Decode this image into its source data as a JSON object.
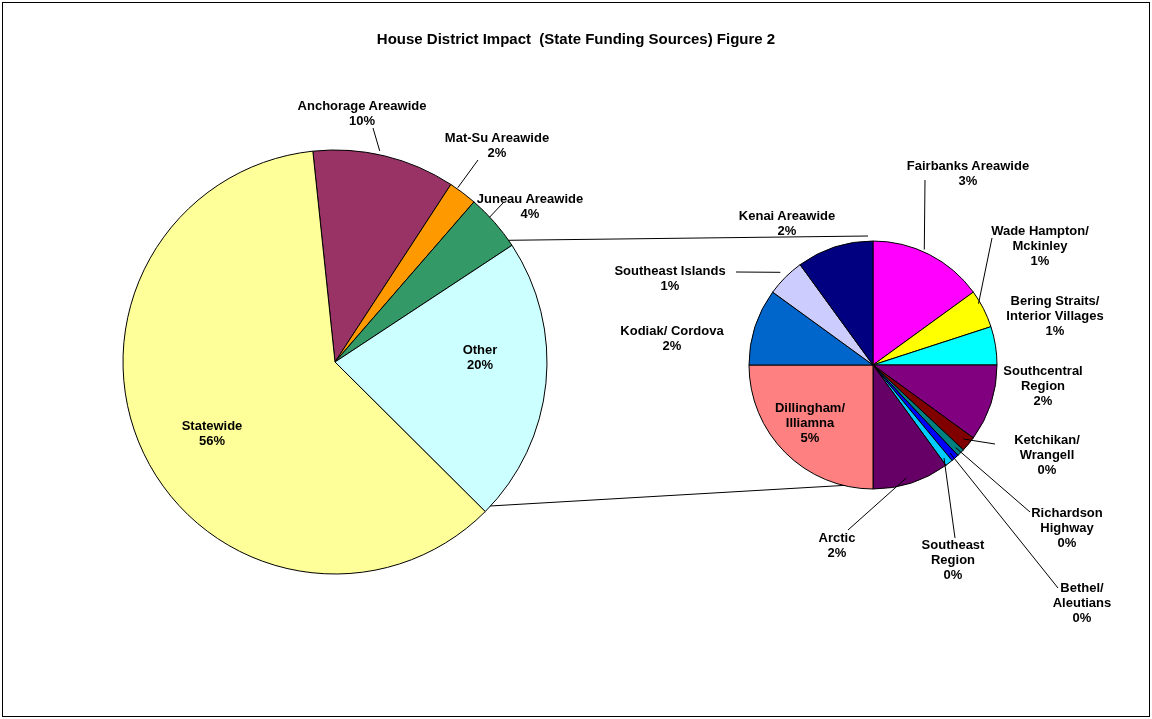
{
  "chart_data": [
    {
      "type": "pie",
      "title": "House District Impact  (State Funding Sources) Figure 2",
      "categories": [
        "Anchorage Areawide",
        "Mat-Su Areawide",
        "Juneau Areawide",
        "Other",
        "Statewide"
      ],
      "values": [
        10,
        2,
        4,
        20,
        56
      ],
      "colors": [
        "#993366",
        "#ff9900",
        "#339966",
        "#ccffff",
        "#ffff99"
      ],
      "value_labels": [
        "10%",
        "2%",
        "4%",
        "20%",
        "56%"
      ]
    },
    {
      "type": "pie",
      "categories": [
        "Fairbanks Areawide",
        "Wade Hampton/ Mckinley",
        "Bering Straits/ Interior Villages",
        "Southcentral Region",
        "Ketchikan/ Wrangell",
        "Richardson Highway",
        "Bethel/ Aleutians",
        "Southeast Region",
        "Arctic",
        "Dillingham/ Illiamna",
        "Kodiak/ Cordova",
        "Southeast Islands",
        "Kenai Areawide"
      ],
      "values": [
        3,
        1,
        1,
        2,
        0.4,
        0.2,
        0.2,
        0.2,
        2,
        5,
        2,
        1,
        2
      ],
      "colors": [
        "#ff00ff",
        "#ffff00",
        "#00ffff",
        "#800080",
        "#800000",
        "#008080",
        "#0000ff",
        "#00ccff",
        "#660066",
        "#ff8080",
        "#0066cc",
        "#ccccff",
        "#000080"
      ],
      "value_labels": [
        "3%",
        "1%",
        "1%",
        "2%",
        "0%",
        "0%",
        "0%",
        "0%",
        "2%",
        "5%",
        "2%",
        "1%",
        "2%"
      ]
    }
  ]
}
